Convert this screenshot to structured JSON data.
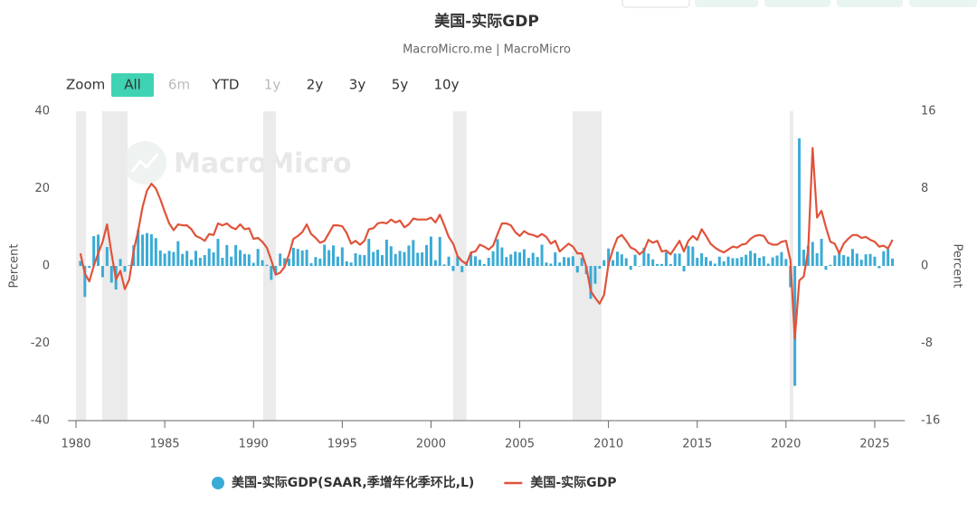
{
  "chart_data": {
    "type": "bar",
    "title": "美国-实际GDP",
    "subtitle": "MacroMicro.me | MacroMicro",
    "watermark": "MacroMicro",
    "zoom": {
      "label": "Zoom",
      "buttons": [
        "All",
        "6m",
        "YTD",
        "1y",
        "2y",
        "3y",
        "5y",
        "10y"
      ],
      "active": "All",
      "disabled": [
        "6m",
        "1y"
      ]
    },
    "y_label": "Percent",
    "y2_label": "Percent",
    "xlim": [
      1979.55,
      2026.7
    ],
    "xticks": [
      1980,
      1985,
      1990,
      1995,
      2000,
      2005,
      2010,
      2015,
      2020,
      2025
    ],
    "ylim": [
      -40,
      40
    ],
    "yticks": [
      -40,
      -20,
      0,
      20,
      40
    ],
    "y2lim": [
      -16,
      16
    ],
    "y2ticks": [
      -16,
      -8,
      0,
      8,
      16
    ],
    "shaded_ranges": [
      [
        1980.0,
        1980.56
      ],
      [
        1981.48,
        1982.9
      ],
      [
        1990.55,
        1991.26
      ],
      [
        2001.25,
        2002.0
      ],
      [
        2007.98,
        2009.61
      ],
      [
        2020.21,
        2020.42
      ]
    ],
    "x": [
      1980.25,
      1980.5,
      1980.75,
      1981,
      1981.25,
      1981.5,
      1981.75,
      1982,
      1982.25,
      1982.5,
      1982.75,
      1983,
      1983.25,
      1983.5,
      1983.75,
      1984,
      1984.25,
      1984.5,
      1984.75,
      1985,
      1985.25,
      1985.5,
      1985.75,
      1986,
      1986.25,
      1986.5,
      1986.75,
      1987,
      1987.25,
      1987.5,
      1987.75,
      1988,
      1988.25,
      1988.5,
      1988.75,
      1989,
      1989.25,
      1989.5,
      1989.75,
      1990,
      1990.25,
      1990.5,
      1990.75,
      1991,
      1991.25,
      1991.5,
      1991.75,
      1992,
      1992.25,
      1992.5,
      1992.75,
      1993,
      1993.25,
      1993.5,
      1993.75,
      1994,
      1994.25,
      1994.5,
      1994.75,
      1995,
      1995.25,
      1995.5,
      1995.75,
      1996,
      1996.25,
      1996.5,
      1996.75,
      1997,
      1997.25,
      1997.5,
      1997.75,
      1998,
      1998.25,
      1998.5,
      1998.75,
      1999,
      1999.25,
      1999.5,
      1999.75,
      2000,
      2000.25,
      2000.5,
      2000.75,
      2001,
      2001.25,
      2001.5,
      2001.75,
      2002,
      2002.25,
      2002.5,
      2002.75,
      2003,
      2003.25,
      2003.5,
      2003.75,
      2004,
      2004.25,
      2004.5,
      2004.75,
      2005,
      2005.25,
      2005.5,
      2005.75,
      2006,
      2006.25,
      2006.5,
      2006.75,
      2007,
      2007.25,
      2007.5,
      2007.75,
      2008,
      2008.25,
      2008.5,
      2008.75,
      2009,
      2009.25,
      2009.5,
      2009.75,
      2010,
      2010.25,
      2010.5,
      2010.75,
      2011,
      2011.25,
      2011.5,
      2011.75,
      2012,
      2012.25,
      2012.5,
      2012.75,
      2013,
      2013.25,
      2013.5,
      2013.75,
      2014,
      2014.25,
      2014.5,
      2014.75,
      2015,
      2015.25,
      2015.5,
      2015.75,
      2016,
      2016.25,
      2016.5,
      2016.75,
      2017,
      2017.25,
      2017.5,
      2017.75,
      2018,
      2018.25,
      2018.5,
      2018.75,
      2019,
      2019.25,
      2019.5,
      2019.75,
      2020,
      2020.25,
      2020.5,
      2020.75,
      2021,
      2021.25,
      2021.5,
      2021.75,
      2022,
      2022.25,
      2022.5,
      2022.75,
      2023,
      2023.25,
      2023.5,
      2023.75,
      2024,
      2024.25,
      2024.5,
      2024.75,
      2025,
      2025.25,
      2025.5,
      2025.75,
      2026
    ],
    "legend": "bottom",
    "series": [
      {
        "name": "美国-实际GDP(SAAR,季增年化季环比,L)",
        "type": "bar",
        "axis": "y",
        "color": "#3aabd6",
        "values": [
          1.3,
          -8.0,
          -0.5,
          7.7,
          8.1,
          -2.9,
          4.9,
          -4.3,
          -6.1,
          1.8,
          -1.5,
          0.2,
          5.4,
          9.4,
          8.1,
          8.5,
          8.2,
          7.2,
          4.0,
          3.2,
          3.9,
          3.6,
          6.4,
          3.1,
          3.9,
          1.6,
          3.9,
          2.1,
          2.8,
          4.5,
          3.5,
          7.0,
          2.1,
          5.4,
          2.4,
          5.4,
          4.1,
          3.1,
          3.0,
          0.8,
          4.4,
          1.5,
          0.3,
          -3.6,
          -1.9,
          3.2,
          2.0,
          1.9,
          4.7,
          4.4,
          4.0,
          4.2,
          0.7,
          2.3,
          1.9,
          5.5,
          4.1,
          5.3,
          2.4,
          4.8,
          1.2,
          0.9,
          3.3,
          2.9,
          2.8,
          7.0,
          3.6,
          4.2,
          2.8,
          6.8,
          5.1,
          3.1,
          3.9,
          3.6,
          5.3,
          6.7,
          3.4,
          3.5,
          5.4,
          7.6,
          1.5,
          7.5,
          0.4,
          2.4,
          -1.3,
          2.5,
          -1.6,
          1.1,
          3.4,
          2.5,
          1.6,
          0.5,
          2.1,
          3.8,
          6.9,
          4.8,
          2.3,
          3.0,
          3.7,
          3.5,
          4.3,
          2.1,
          3.4,
          2.3,
          5.5,
          0.9,
          0.6,
          3.5,
          0.9,
          2.3,
          2.2,
          2.5,
          -1.7,
          2.1,
          -2.1,
          -8.5,
          -4.6,
          -0.7,
          1.5,
          4.5,
          1.5,
          3.7,
          3.0,
          2.0,
          -1.0,
          2.9,
          -0.1,
          4.7,
          3.2,
          1.7,
          0.5,
          0.5,
          3.6,
          0.5,
          3.2,
          3.2,
          -1.4,
          5.2,
          5.0,
          2.1,
          3.3,
          2.3,
          1.3,
          0.6,
          2.4,
          1.2,
          2.4,
          2.0,
          2.0,
          2.3,
          2.9,
          3.9,
          3.3,
          2.1,
          2.5,
          0.6,
          2.2,
          2.7,
          3.6,
          1.8,
          -5.5,
          -31.0,
          33.0,
          4.2,
          5.2,
          6.2,
          3.3,
          7.0,
          -1.0,
          0.3,
          2.7,
          3.4,
          2.8,
          2.4,
          4.4,
          3.2,
          1.6,
          3.0,
          3.1,
          2.4,
          -0.6,
          3.8,
          4.4,
          1.9
        ]
      },
      {
        "name": "美国-实际GDP",
        "type": "line",
        "axis": "y2",
        "color": "#e0533a",
        "values": [
          1.3,
          -0.8,
          -1.6,
          0.0,
          1.3,
          2.5,
          4.3,
          1.3,
          -1.4,
          -0.5,
          -2.4,
          -1.4,
          1.6,
          3.6,
          6.1,
          7.8,
          8.5,
          8.0,
          6.9,
          5.6,
          4.4,
          3.7,
          4.3,
          4.2,
          4.2,
          3.8,
          3.1,
          2.9,
          2.6,
          3.3,
          3.2,
          4.4,
          4.2,
          4.4,
          4.0,
          3.8,
          4.3,
          3.8,
          3.9,
          2.8,
          2.9,
          2.5,
          1.9,
          0.6,
          -0.9,
          -0.7,
          -0.1,
          1.2,
          2.8,
          3.1,
          3.5,
          4.3,
          3.3,
          2.9,
          2.4,
          2.6,
          3.4,
          4.2,
          4.2,
          4.1,
          3.4,
          2.3,
          2.6,
          2.2,
          2.6,
          3.8,
          3.9,
          4.4,
          4.5,
          4.4,
          4.8,
          4.5,
          4.7,
          4.0,
          4.3,
          4.9,
          4.8,
          4.8,
          4.8,
          5.0,
          4.5,
          5.3,
          4.2,
          3.0,
          2.3,
          1.0,
          0.5,
          0.2,
          1.4,
          1.5,
          2.2,
          2.0,
          1.7,
          2.1,
          3.3,
          4.4,
          4.4,
          4.2,
          3.5,
          3.1,
          3.6,
          3.3,
          3.2,
          3.0,
          3.3,
          3.0,
          2.3,
          2.6,
          1.5,
          1.9,
          2.3,
          2.0,
          1.3,
          1.3,
          -0.1,
          -2.6,
          -3.3,
          -3.9,
          -3.0,
          0.2,
          1.7,
          2.9,
          3.2,
          2.6,
          1.9,
          1.7,
          1.2,
          1.6,
          2.7,
          2.4,
          2.6,
          1.5,
          1.6,
          1.2,
          1.9,
          2.6,
          1.5,
          2.6,
          3.1,
          2.7,
          3.8,
          3.1,
          2.3,
          1.9,
          1.6,
          1.4,
          1.7,
          2.0,
          1.9,
          2.2,
          2.3,
          2.8,
          3.1,
          3.2,
          3.1,
          2.4,
          2.2,
          2.2,
          2.5,
          2.6,
          0.6,
          -7.5,
          -1.5,
          -1.1,
          1.6,
          12.2,
          5.0,
          5.7,
          4.0,
          2.5,
          2.3,
          1.3,
          2.3,
          2.8,
          3.2,
          3.2,
          2.9,
          3.0,
          2.7,
          2.5,
          2.0,
          2.1,
          1.8,
          2.7
        ]
      }
    ]
  }
}
